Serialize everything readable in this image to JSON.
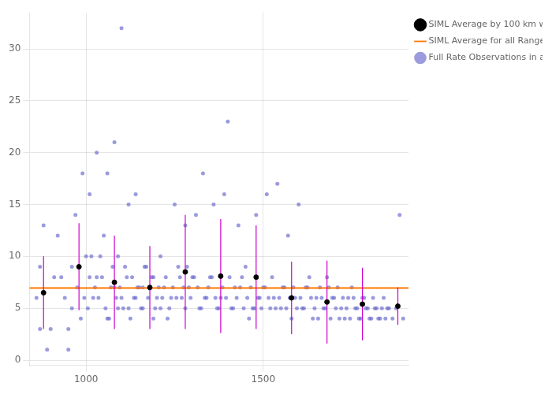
{
  "chart_data": {
    "type": "scatter",
    "xlim": [
      840,
      1910
    ],
    "ylim": [
      -0.5,
      33.5
    ],
    "xticks": [
      1000,
      1500
    ],
    "yticks": [
      0,
      5,
      10,
      15,
      20,
      25,
      30
    ],
    "grid": true,
    "legend": "right",
    "series": [
      {
        "name": "Full Rate Observations in a Normal Point",
        "type": "scatter",
        "color": "#6666cc",
        "marker": "circle",
        "x": [
          870,
          880,
          900,
          920,
          930,
          940,
          950,
          960,
          960,
          970,
          980,
          990,
          1000,
          1010,
          1010,
          1020,
          1030,
          1030,
          1040,
          1050,
          1060,
          1060,
          1070,
          1080,
          1080,
          1090,
          1090,
          1100,
          1100,
          1110,
          1120,
          1120,
          1130,
          1140,
          1140,
          1150,
          1160,
          1160,
          1170,
          1180,
          1190,
          1190,
          1200,
          1210,
          1210,
          1220,
          1230,
          1240,
          1250,
          1260,
          1270,
          1280,
          1280,
          1290,
          1300,
          1310,
          1320,
          1330,
          1340,
          1350,
          1360,
          1370,
          1380,
          1390,
          1400,
          1410,
          1420,
          1430,
          1440,
          1450,
          1460,
          1470,
          1480,
          1490,
          1500,
          1510,
          1520,
          1530,
          1540,
          1550,
          1560,
          1570,
          1580,
          1590,
          1600,
          1610,
          1620,
          1630,
          1640,
          1650,
          1660,
          1670,
          1680,
          1690,
          1700,
          1710,
          1720,
          1730,
          1740,
          1750,
          1760,
          1770,
          1780,
          1790,
          1800,
          1810,
          1820,
          1830,
          1840,
          1850,
          860,
          870,
          890,
          910,
          950,
          975,
          985,
          995,
          1005,
          1015,
          1025,
          1035,
          1045,
          1055,
          1065,
          1075,
          1085,
          1095,
          1105,
          1115,
          1125,
          1135,
          1145,
          1155,
          1165,
          1175,
          1185,
          1195,
          1205,
          1215,
          1225,
          1235,
          1245,
          1255,
          1265,
          1275,
          1285,
          1295,
          1305,
          1315,
          1325,
          1335,
          1345,
          1355,
          1365,
          1375,
          1385,
          1395,
          1405,
          1415,
          1425,
          1435,
          1445,
          1455,
          1465,
          1475,
          1485,
          1495,
          1505,
          1515,
          1525,
          1535,
          1545,
          1555,
          1565,
          1575,
          1585,
          1595,
          1605,
          1615,
          1625,
          1635,
          1645,
          1655,
          1665,
          1675,
          1685,
          1695,
          1705,
          1715,
          1725,
          1735,
          1745,
          1755,
          1765,
          1775,
          1785,
          1795,
          1805,
          1815,
          1825,
          1835,
          1845,
          1855,
          1865,
          1875,
          1885,
          1895
        ],
        "values": [
          9.0,
          13.0,
          3.0,
          12.0,
          8.0,
          6.0,
          3.0,
          5.0,
          9.0,
          14.0,
          9.0,
          18.0,
          10.0,
          8.0,
          16.0,
          6.0,
          8.0,
          20.0,
          10.0,
          12.0,
          4.0,
          18.0,
          7.0,
          7.0,
          21.0,
          5.0,
          10.0,
          6.0,
          32.0,
          9.0,
          5.0,
          15.0,
          8.0,
          6.0,
          16.0,
          7.0,
          5.0,
          7.0,
          9.0,
          7.0,
          4.0,
          8.0,
          6.0,
          5.0,
          10.0,
          7.0,
          4.0,
          6.0,
          15.0,
          9.0,
          6.0,
          5.0,
          13.0,
          7.0,
          8.0,
          14.0,
          5.0,
          18.0,
          6.0,
          8.0,
          15.0,
          5.0,
          6.0,
          16.0,
          23.0,
          5.0,
          7.0,
          13.0,
          8.0,
          9.0,
          4.0,
          5.0,
          14.0,
          6.0,
          7.0,
          16.0,
          5.0,
          6.0,
          17.0,
          5.0,
          7.0,
          12.0,
          4.0,
          6.0,
          15.0,
          5.0,
          7.0,
          8.0,
          4.0,
          6.0,
          7.0,
          5.0,
          8.0,
          4.0,
          6.0,
          7.0,
          5.0,
          4.0,
          6.0,
          7.0,
          5.0,
          4.0,
          6.0,
          5.0,
          4.0,
          6.0,
          5.0,
          4.0,
          6.0,
          5.0,
          6.0,
          3.0,
          1.0,
          8.0,
          1.0,
          7.0,
          4.0,
          6.0,
          5.0,
          10.0,
          7.0,
          6.0,
          8.0,
          5.0,
          4.0,
          9.0,
          6.0,
          7.0,
          5.0,
          8.0,
          4.0,
          6.0,
          7.0,
          5.0,
          9.0,
          6.0,
          8.0,
          5.0,
          7.0,
          6.0,
          8.0,
          5.0,
          7.0,
          6.0,
          8.0,
          7.0,
          9.0,
          6.0,
          8.0,
          7.0,
          5.0,
          6.0,
          7.0,
          8.0,
          6.0,
          5.0,
          7.0,
          6.0,
          8.0,
          5.0,
          6.0,
          7.0,
          5.0,
          6.0,
          7.0,
          5.0,
          6.0,
          5.0,
          7.0,
          6.0,
          8.0,
          5.0,
          6.0,
          7.0,
          5.0,
          6.0,
          7.0,
          5.0,
          6.0,
          5.0,
          7.0,
          6.0,
          5.0,
          4.0,
          6.0,
          5.0,
          7.0,
          6.0,
          5.0,
          4.0,
          6.0,
          5.0,
          4.0,
          6.0,
          5.0,
          4.0,
          6.0,
          5.0,
          4.0,
          5.0,
          4.0,
          5.0,
          4.0,
          5.0,
          4.0,
          5.0,
          14.0,
          4.0
        ]
      },
      {
        "name": "SIML Average by 100 km with STD",
        "type": "errorbar",
        "color": "#000000",
        "marker": "circle",
        "x": [
          880,
          980,
          1080,
          1180,
          1280,
          1380,
          1480,
          1580,
          1680,
          1780,
          1880
        ],
        "values": [
          6.5,
          9.0,
          7.5,
          7.0,
          8.5,
          8.1,
          8.0,
          6.0,
          5.6,
          5.4,
          5.2
        ],
        "std": [
          3.5,
          4.2,
          4.5,
          4.0,
          5.5,
          5.5,
          5.0,
          3.5,
          4.0,
          3.5,
          1.8
        ],
        "error_color": "#cc00cc"
      },
      {
        "name": "SIML Average for all Ranges",
        "type": "hline",
        "color": "#ff7700",
        "line_style": "solid",
        "values": [
          6.95
        ]
      }
    ]
  }
}
